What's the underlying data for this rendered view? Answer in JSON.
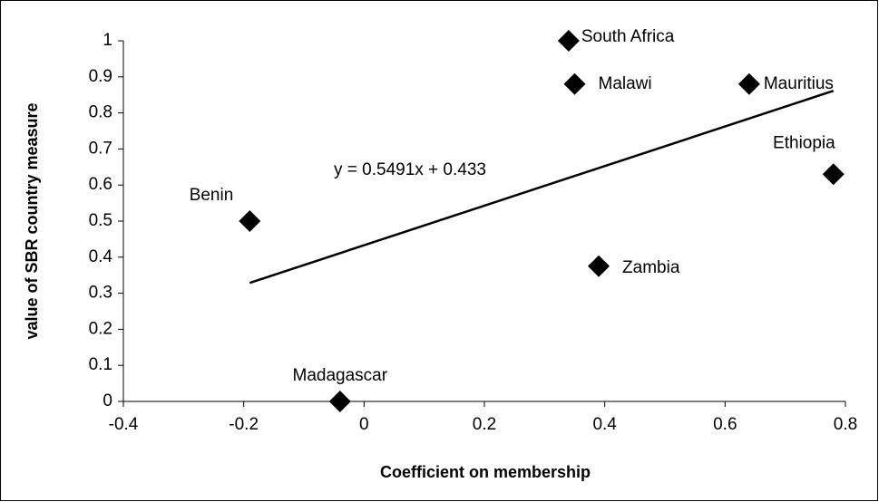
{
  "chart_data": {
    "type": "scatter",
    "x_label": "Coefficient on membership",
    "y_label": "value of SBR country measure",
    "series": [
      {
        "color": "#000000",
        "names": [
          "Benin",
          "Madagascar",
          "South Africa",
          "Malawi",
          "Zambia",
          "Mauritius",
          "Ethiopia"
        ],
        "x": [
          -0.19,
          -0.04,
          0.34,
          0.35,
          0.39,
          0.64,
          0.78
        ],
        "values": [
          0.5,
          0,
          1,
          0.88,
          0.375,
          0.88,
          0.63
        ]
      }
    ],
    "trendline": {
      "label": "y = 0.5491x + 0.433",
      "slope": 0.5491,
      "intercept": 0.433
    },
    "xlim": [
      -0.4,
      0.8
    ],
    "xticks": [
      -0.4,
      -0.2,
      0,
      0.2,
      0.4,
      0.6,
      0.8
    ],
    "ylim": [
      0,
      1
    ],
    "yticks": [
      0,
      0.1,
      0.2,
      0.3,
      0.4,
      0.5,
      0.6,
      0.7,
      0.8,
      0.9,
      1
    ],
    "grid": false
  }
}
